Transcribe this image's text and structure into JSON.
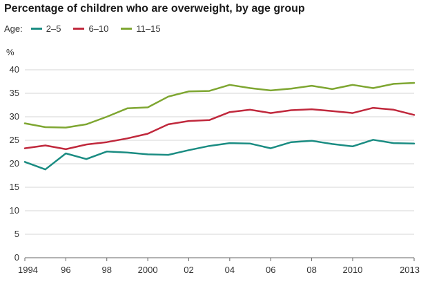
{
  "chart_data": {
    "type": "line",
    "title": "Percentage of children who are overweight, by age group",
    "legend_prefix": "Age:",
    "ylabel": "%",
    "xlabel": "",
    "x": [
      1994,
      1995,
      1996,
      1997,
      1998,
      1999,
      2000,
      2001,
      2002,
      2003,
      2004,
      2005,
      2006,
      2007,
      2008,
      2009,
      2010,
      2011,
      2012,
      2013
    ],
    "x_tick_labels": [
      {
        "x": 1994,
        "label": "1994"
      },
      {
        "x": 1996,
        "label": "96"
      },
      {
        "x": 1998,
        "label": "98"
      },
      {
        "x": 2000,
        "label": "2000"
      },
      {
        "x": 2002,
        "label": "02"
      },
      {
        "x": 2004,
        "label": "04"
      },
      {
        "x": 2006,
        "label": "06"
      },
      {
        "x": 2008,
        "label": "08"
      },
      {
        "x": 2010,
        "label": "2010"
      },
      {
        "x": 2013,
        "label": "2013"
      }
    ],
    "xlim": [
      1994,
      2013
    ],
    "ylim": [
      0,
      40
    ],
    "y_ticks": [
      0,
      5,
      10,
      15,
      20,
      25,
      30,
      35,
      40
    ],
    "grid": "horizontal",
    "legend_position": "top-left",
    "series": [
      {
        "name": "2–5",
        "color": "#1a8c82",
        "values": [
          20.4,
          18.8,
          22.2,
          21.0,
          22.6,
          22.4,
          22.0,
          21.9,
          22.9,
          23.8,
          24.4,
          24.3,
          23.3,
          24.6,
          24.9,
          24.2,
          23.7,
          25.1,
          24.4,
          24.3
        ]
      },
      {
        "name": "6–10",
        "color": "#c0283c",
        "values": [
          23.3,
          23.9,
          23.1,
          24.1,
          24.6,
          25.4,
          26.4,
          28.4,
          29.1,
          29.3,
          31.0,
          31.5,
          30.8,
          31.4,
          31.6,
          31.2,
          30.8,
          31.9,
          31.5,
          30.4
        ]
      },
      {
        "name": "11–15",
        "color": "#7ea631",
        "values": [
          28.6,
          27.8,
          27.7,
          28.4,
          30.0,
          31.8,
          32.0,
          34.3,
          35.4,
          35.5,
          36.8,
          36.1,
          35.6,
          36.0,
          36.6,
          35.9,
          36.8,
          36.1,
          37.0,
          37.2
        ]
      }
    ]
  }
}
